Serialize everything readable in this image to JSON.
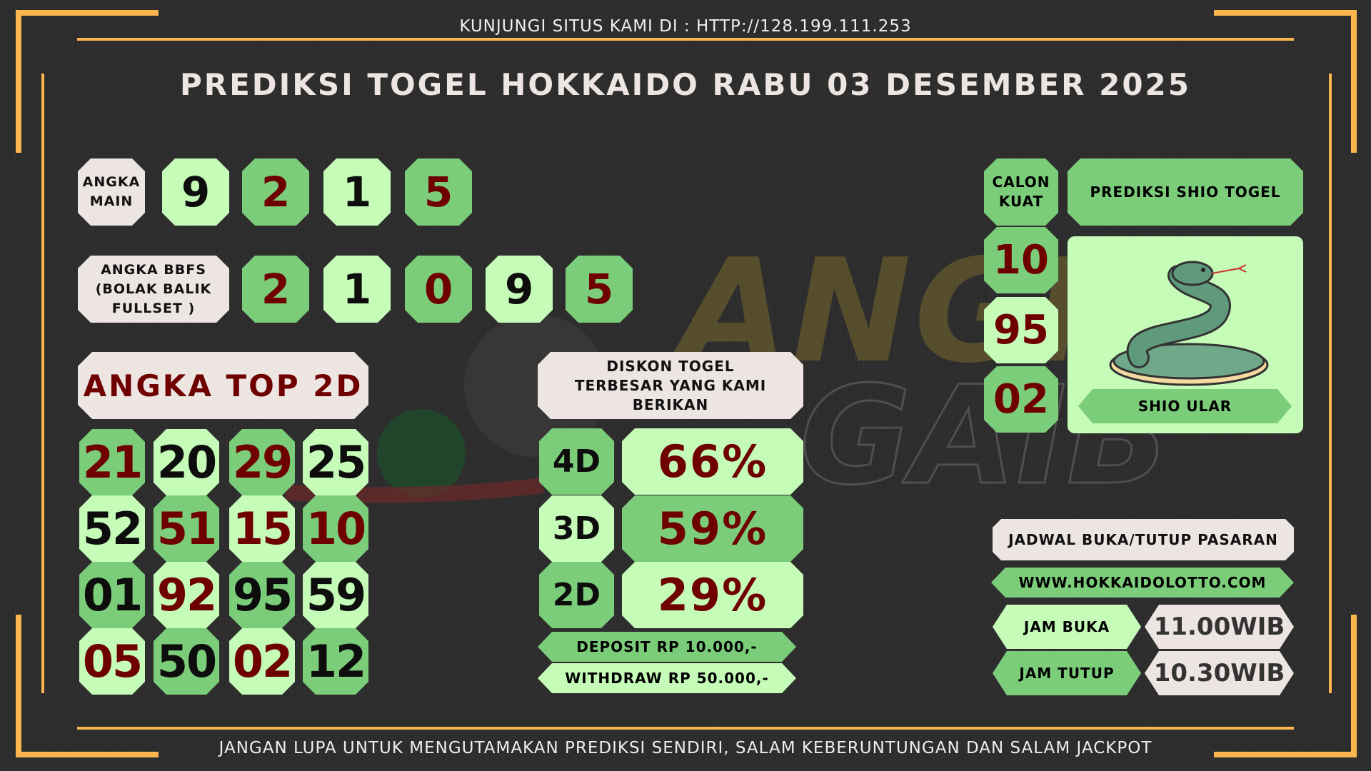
{
  "header": {
    "visit": "KUNJUNGI SITUS KAMI DI : HTTP://128.199.111.253",
    "title": "PREDIKSI TOGEL HOKKAIDO RABU 03 DESEMBER 2025"
  },
  "watermark": "ANGKA GAIB",
  "angka_main": {
    "label": "ANGKA MAIN",
    "digits": [
      "9",
      "2",
      "1",
      "5"
    ]
  },
  "bbfs": {
    "label": "ANGKA BBFS (BOLAK BALIK FULLSET )",
    "digits": [
      "2",
      "1",
      "0",
      "9",
      "5"
    ]
  },
  "top2d": {
    "label": "ANGKA TOP 2D",
    "numbers": [
      "21",
      "20",
      "29",
      "25",
      "52",
      "51",
      "15",
      "10",
      "01",
      "92",
      "95",
      "59",
      "05",
      "50",
      "02",
      "12"
    ]
  },
  "diskon": {
    "label": "DISKON TOGEL TERBESAR YANG KAMI BERIKAN",
    "rows": [
      {
        "type": "4D",
        "pct": "66%"
      },
      {
        "type": "3D",
        "pct": "59%"
      },
      {
        "type": "2D",
        "pct": "29%"
      }
    ],
    "deposit": "DEPOSIT RP 10.000,-",
    "withdraw": "WITHDRAW RP 50.000,-"
  },
  "calon": {
    "label": "CALON KUAT",
    "numbers": [
      "10",
      "95",
      "02"
    ]
  },
  "shio": {
    "label": "PREDIKSI SHIO TOGEL",
    "name": "SHIO ULAR",
    "icon": "snake-icon"
  },
  "jadwal": {
    "label": "JADWAL BUKA/TUTUP PASARAN",
    "site": "WWW.HOKKAIDOLOTTO.COM",
    "buka_label": "JAM BUKA",
    "buka": "11.00WIB",
    "tutup_label": "JAM TUTUP",
    "tutup": "10.30WIB"
  },
  "footer": "JANGAN LUPA UNTUK MENGUTAMAKAN PREDIKSI SENDIRI, SALAM KEBERUNTUNGAN DAN SALAM JACKPOT",
  "colors": {
    "background": "#2d2d2d",
    "accent": "#fbb64e",
    "light_green": "#c5fcb8",
    "mid_green": "#7bcd7a",
    "cream": "#ede5e2",
    "dark_red": "#6e0000"
  }
}
